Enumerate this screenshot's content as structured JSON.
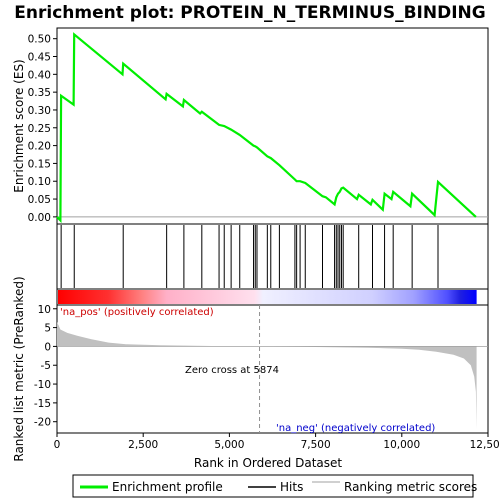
{
  "chart_data": {
    "type": "line",
    "title": "Enrichment plot: PROTEIN_N_TERMINUS_BINDING",
    "xlabel": "Rank in Ordered Dataset",
    "ylabel_top": "Enrichment score (ES)",
    "ylabel_bottom": "Ranked list metric (PreRanked)",
    "xlim": [
      0,
      12500
    ],
    "x_ticks": [
      0,
      2500,
      5000,
      7500,
      10000,
      12500
    ],
    "x_tick_labels": [
      "0",
      "2,500",
      "5,000",
      "7,500",
      "10,000",
      "12,500"
    ],
    "es_ylim": [
      -0.02,
      0.53
    ],
    "es_ticks": [
      0.0,
      0.05,
      0.1,
      0.15,
      0.2,
      0.25,
      0.3,
      0.35,
      0.4,
      0.45,
      0.5
    ],
    "es_tick_labels": [
      "0.00",
      "0.05",
      "0.10",
      "0.15",
      "0.20",
      "0.25",
      "0.30",
      "0.35",
      "0.40",
      "0.45",
      "0.50"
    ],
    "metric_ylim": [
      -23,
      11
    ],
    "metric_ticks": [
      10,
      5,
      0,
      -5,
      -10,
      -15,
      -20
    ],
    "metric_tick_labels": [
      "10",
      "5",
      "0",
      "-5",
      "-10",
      "-15",
      "-20"
    ],
    "es_curve": [
      [
        0,
        0.0
      ],
      [
        100,
        -0.01
      ],
      [
        120,
        0.34
      ],
      [
        480,
        0.315
      ],
      [
        500,
        0.512
      ],
      [
        1900,
        0.4
      ],
      [
        1920,
        0.43
      ],
      [
        3150,
        0.33
      ],
      [
        3180,
        0.345
      ],
      [
        3650,
        0.31
      ],
      [
        3680,
        0.328
      ],
      [
        4150,
        0.29
      ],
      [
        4200,
        0.295
      ],
      [
        4700,
        0.258
      ],
      [
        4850,
        0.255
      ],
      [
        5050,
        0.245
      ],
      [
        5300,
        0.23
      ],
      [
        5700,
        0.2
      ],
      [
        5750,
        0.198
      ],
      [
        5800,
        0.195
      ],
      [
        6100,
        0.17
      ],
      [
        6200,
        0.165
      ],
      [
        6450,
        0.145
      ],
      [
        6900,
        0.105
      ],
      [
        6950,
        0.1
      ],
      [
        7050,
        0.1
      ],
      [
        7200,
        0.095
      ],
      [
        7700,
        0.058
      ],
      [
        7800,
        0.055
      ],
      [
        8050,
        0.035
      ],
      [
        8100,
        0.055
      ],
      [
        8150,
        0.065
      ],
      [
        8200,
        0.07
      ],
      [
        8250,
        0.08
      ],
      [
        8300,
        0.082
      ],
      [
        8700,
        0.05
      ],
      [
        8750,
        0.062
      ],
      [
        9100,
        0.035
      ],
      [
        9150,
        0.048
      ],
      [
        9450,
        0.02
      ],
      [
        9500,
        0.065
      ],
      [
        9700,
        0.05
      ],
      [
        9750,
        0.07
      ],
      [
        10250,
        0.03
      ],
      [
        10300,
        0.065
      ],
      [
        10950,
        0.005
      ],
      [
        11050,
        0.098
      ],
      [
        12150,
        0.0
      ]
    ],
    "hits": [
      120,
      500,
      1920,
      3180,
      3680,
      4200,
      4700,
      4850,
      5050,
      5300,
      5700,
      5750,
      5800,
      6100,
      6200,
      6450,
      6900,
      6950,
      7050,
      7200,
      7700,
      8050,
      8100,
      8150,
      8200,
      8250,
      8300,
      8750,
      9150,
      9500,
      9750,
      10300,
      11050
    ],
    "metric_curve": [
      [
        0,
        6.5
      ],
      [
        100,
        4.5
      ],
      [
        300,
        3.6
      ],
      [
        600,
        2.8
      ],
      [
        1000,
        1.9
      ],
      [
        1500,
        1.0
      ],
      [
        2000,
        0.6
      ],
      [
        3000,
        0.3
      ],
      [
        4000,
        0.15
      ],
      [
        5000,
        0.05
      ],
      [
        5874,
        0.0
      ],
      [
        7000,
        -0.1
      ],
      [
        8000,
        -0.2
      ],
      [
        9000,
        -0.35
      ],
      [
        10000,
        -0.6
      ],
      [
        10500,
        -0.9
      ],
      [
        11000,
        -1.4
      ],
      [
        11500,
        -2.2
      ],
      [
        11800,
        -3.2
      ],
      [
        12000,
        -5.0
      ],
      [
        12100,
        -8.0
      ],
      [
        12150,
        -12.0
      ],
      [
        12170,
        -22.0
      ]
    ],
    "zero_cross": 5874,
    "annotations": {
      "pos": "'na_pos' (positively correlated)",
      "neg": "'na_neg' (negatively correlated)",
      "zero": "Zero cross at 5874"
    },
    "legend": {
      "entries": [
        "Enrichment profile",
        "Hits",
        "Ranking metric scores"
      ],
      "placement": "bottom"
    },
    "colors": {
      "es_line": "#00ee00",
      "hits": "#000000",
      "metric_fill": "#c0c0c0",
      "pos_band_left": "#ff0000",
      "pos_band_right": "#ffd0e0",
      "neg_band_left": "#d8d8ff",
      "neg_band_right": "#0000ff",
      "pos_text": "#cc0000",
      "neg_text": "#0000cc"
    }
  }
}
